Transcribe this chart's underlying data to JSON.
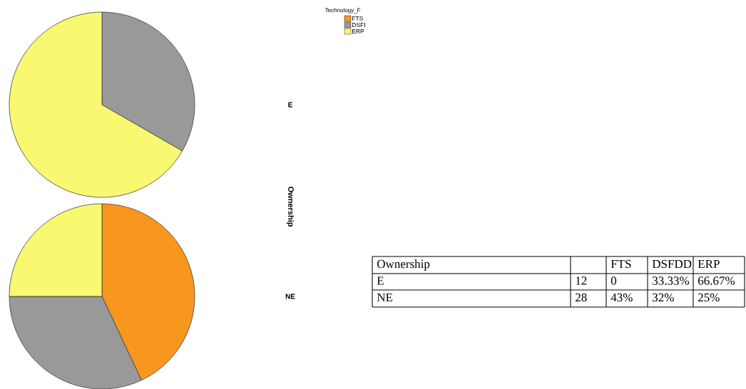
{
  "chart_data": [
    {
      "type": "pie",
      "title": "E",
      "ylabel": "Ownership",
      "legend_title": "Technology_F",
      "legend": "top",
      "categories": [
        "FTS",
        "DSFI",
        "ERP"
      ],
      "values": [
        0,
        33.33,
        66.67
      ],
      "colors": [
        "#f7971d",
        "#999999",
        "#f9f871"
      ]
    },
    {
      "type": "pie",
      "title": "NE",
      "values": [
        43,
        32,
        25
      ],
      "colors": [
        "#f7971d",
        "#999999",
        "#f9f871"
      ]
    },
    {
      "type": "other",
      "ylabel": "Ownership",
      "categories": [
        null,
        "FTS",
        "DSFDD",
        "ERP"
      ],
      "y_categories": [
        "E",
        "NE"
      ],
      "cell_labels": [
        [
          "12",
          "0",
          "33.33%",
          "66.67%"
        ],
        [
          "28",
          "43%",
          "32%",
          "25%"
        ]
      ]
    }
  ]
}
